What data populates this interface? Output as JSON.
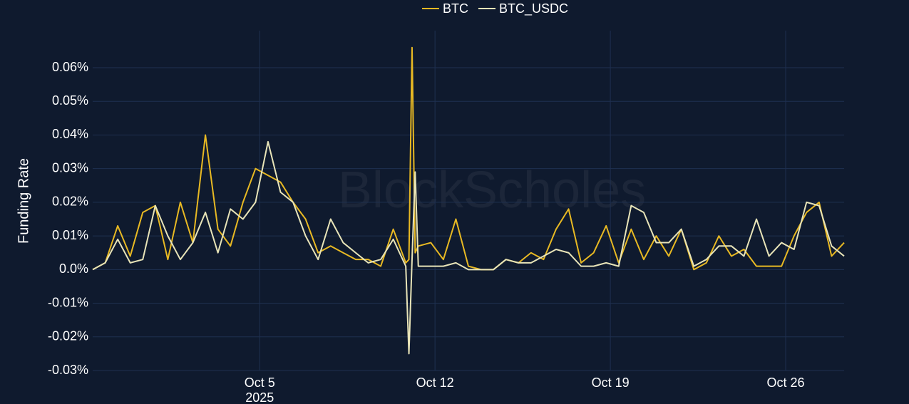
{
  "chart_data": {
    "type": "line",
    "watermark": "BlockScholes",
    "y_label": "Funding Rate",
    "legend": "top",
    "grid": true,
    "xlim": [
      "2025-09-28T08:00",
      "2025-10-28T08:00"
    ],
    "xticks": [
      {
        "value": "2025-10-05T00:00",
        "label": "Oct 5"
      },
      {
        "value": "2025-10-12T00:00",
        "label": "Oct 12"
      },
      {
        "value": "2025-10-19T00:00",
        "label": "Oct 19"
      },
      {
        "value": "2025-10-26T00:00",
        "label": "Oct 26"
      }
    ],
    "x_year_label": "2025",
    "ylim": [
      -0.03,
      0.07
    ],
    "yticks": [
      {
        "value": -0.03,
        "label": "-0.03%"
      },
      {
        "value": -0.02,
        "label": "-0.02%"
      },
      {
        "value": -0.01,
        "label": "-0.01%"
      },
      {
        "value": 0,
        "label": "0.0%"
      },
      {
        "value": 0.01,
        "label": "0.01%"
      },
      {
        "value": 0.02,
        "label": "0.02%"
      },
      {
        "value": 0.03,
        "label": "0.03%"
      },
      {
        "value": 0.04,
        "label": "0.04%"
      },
      {
        "value": 0.05,
        "label": "0.05%"
      },
      {
        "value": 0.06,
        "label": "0.06%"
      }
    ],
    "x": [
      "2025-09-28T08:00",
      "2025-09-28T20:00",
      "2025-09-29T08:00",
      "2025-09-29T20:00",
      "2025-09-30T08:00",
      "2025-09-30T20:00",
      "2025-10-01T08:00",
      "2025-10-01T20:00",
      "2025-10-02T08:00",
      "2025-10-02T20:00",
      "2025-10-03T08:00",
      "2025-10-03T20:00",
      "2025-10-04T08:00",
      "2025-10-04T20:00",
      "2025-10-05T08:00",
      "2025-10-05T20:00",
      "2025-10-06T08:00",
      "2025-10-06T20:00",
      "2025-10-07T08:00",
      "2025-10-07T20:00",
      "2025-10-08T08:00",
      "2025-10-08T20:00",
      "2025-10-09T08:00",
      "2025-10-09T20:00",
      "2025-10-10T08:00",
      "2025-10-10T20:00",
      "2025-10-10T23:00",
      "2025-10-11T02:00",
      "2025-10-11T05:00",
      "2025-10-11T08:00",
      "2025-10-11T20:00",
      "2025-10-12T08:00",
      "2025-10-12T20:00",
      "2025-10-13T08:00",
      "2025-10-13T20:00",
      "2025-10-14T08:00",
      "2025-10-14T20:00",
      "2025-10-15T08:00",
      "2025-10-15T20:00",
      "2025-10-16T08:00",
      "2025-10-16T20:00",
      "2025-10-17T08:00",
      "2025-10-17T20:00",
      "2025-10-18T08:00",
      "2025-10-18T20:00",
      "2025-10-19T08:00",
      "2025-10-19T20:00",
      "2025-10-20T08:00",
      "2025-10-20T20:00",
      "2025-10-21T08:00",
      "2025-10-21T20:00",
      "2025-10-22T08:00",
      "2025-10-22T20:00",
      "2025-10-23T08:00",
      "2025-10-23T20:00",
      "2025-10-24T08:00",
      "2025-10-24T20:00",
      "2025-10-25T08:00",
      "2025-10-25T20:00",
      "2025-10-26T08:00",
      "2025-10-26T20:00",
      "2025-10-27T08:00",
      "2025-10-27T20:00",
      "2025-10-28T08:00"
    ],
    "series": [
      {
        "name": "BTC",
        "color": "#e8b923",
        "values": [
          0.0,
          0.002,
          0.013,
          0.004,
          0.017,
          0.019,
          0.003,
          0.02,
          0.008,
          0.04,
          0.012,
          0.007,
          0.02,
          0.03,
          0.028,
          0.026,
          0.02,
          0.015,
          0.005,
          0.007,
          0.005,
          0.003,
          0.003,
          0.001,
          0.012,
          0.002,
          0.003,
          0.066,
          0.005,
          0.007,
          0.008,
          0.003,
          0.015,
          0.001,
          0.0,
          0.0,
          0.003,
          0.002,
          0.005,
          0.003,
          0.012,
          0.018,
          0.002,
          0.005,
          0.013,
          0.002,
          0.012,
          0.003,
          0.01,
          0.004,
          0.012,
          0.0,
          0.002,
          0.01,
          0.004,
          0.006,
          0.001,
          0.001,
          0.001,
          0.01,
          0.017,
          0.02,
          0.004,
          0.008
        ]
      },
      {
        "name": "BTC_USDC",
        "color": "#e8e4b8",
        "values": [
          0.0,
          0.002,
          0.009,
          0.002,
          0.003,
          0.019,
          0.01,
          0.003,
          0.008,
          0.017,
          0.005,
          0.018,
          0.015,
          0.02,
          0.038,
          0.023,
          0.02,
          0.01,
          0.003,
          0.015,
          0.008,
          0.005,
          0.002,
          0.003,
          0.009,
          0.001,
          -0.025,
          0.003,
          0.029,
          0.001,
          0.001,
          0.001,
          0.002,
          0.0,
          0.0,
          0.0,
          0.003,
          0.002,
          0.002,
          0.004,
          0.006,
          0.005,
          0.001,
          0.001,
          0.002,
          0.001,
          0.019,
          0.017,
          0.008,
          0.008,
          0.012,
          0.001,
          0.003,
          0.007,
          0.007,
          0.004,
          0.015,
          0.004,
          0.008,
          0.006,
          0.02,
          0.019,
          0.007,
          0.004
        ]
      }
    ]
  }
}
